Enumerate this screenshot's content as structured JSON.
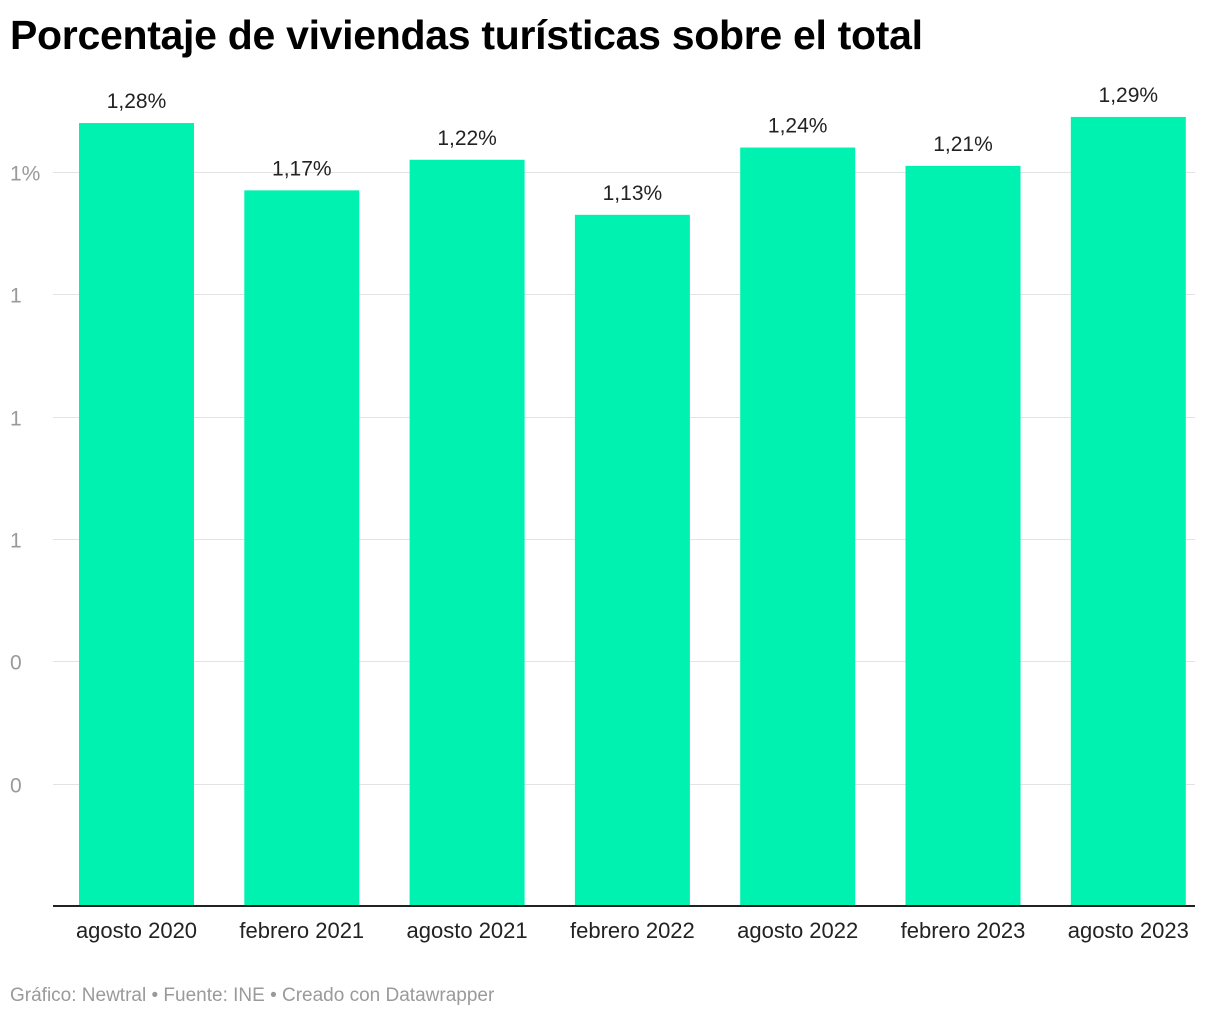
{
  "chart_data": {
    "type": "bar",
    "title": "Porcentaje de viviendas turísticas sobre el total",
    "categories": [
      "agosto 2020",
      "febrero 2021",
      "agosto 2021",
      "febrero 2022",
      "agosto 2022",
      "febrero 2023",
      "agosto 2023"
    ],
    "values": [
      1.28,
      1.17,
      1.22,
      1.13,
      1.24,
      1.21,
      1.29
    ],
    "value_labels": [
      "1,28%",
      "1,17%",
      "1,22%",
      "1,13%",
      "1,24%",
      "1,21%",
      "1,29%"
    ],
    "y_ticks": [
      {
        "value": 0.2,
        "label": "0"
      },
      {
        "value": 0.4,
        "label": "0"
      },
      {
        "value": 0.6,
        "label": "1"
      },
      {
        "value": 0.8,
        "label": "1"
      },
      {
        "value": 1.0,
        "label": "1"
      },
      {
        "value": 1.2,
        "label": "1%"
      }
    ],
    "ylim": [
      0,
      1.2
    ],
    "xlabel": "",
    "ylabel": "",
    "grid": true,
    "bar_color": "#00f2b0"
  },
  "footer": "Gráfico: Newtral • Fuente: INE • Creado con Datawrapper"
}
